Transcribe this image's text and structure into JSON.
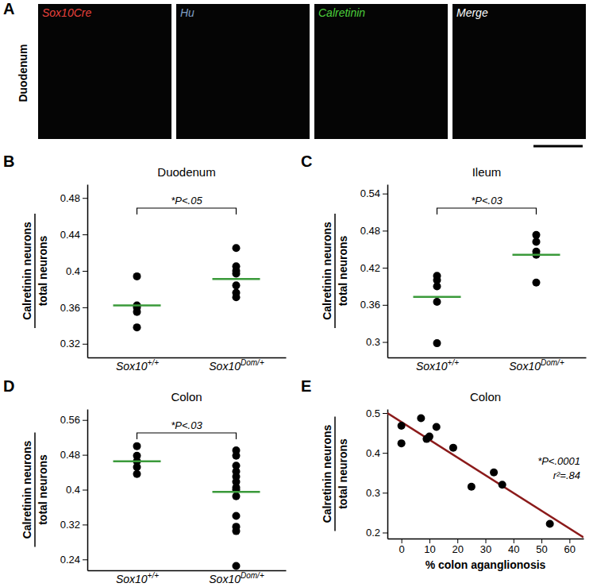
{
  "panel_a": {
    "panel_label": "A",
    "row_label": "Duodenum",
    "images": [
      {
        "label": "Sox10Cre",
        "color": "#e8413c"
      },
      {
        "label": "Hu",
        "color": "#7f9fc4"
      },
      {
        "label": "Calretinin",
        "color": "#4ccf3c"
      },
      {
        "label": "Merge",
        "color": "#ffffff"
      }
    ]
  },
  "chart_data": [
    {
      "type": "strip",
      "panel_label": "B",
      "title": "Duodenum",
      "ylabel": [
        "Calretinin neurons",
        "total neurons"
      ],
      "categories": [
        "Sox10+/+",
        "Sox10Dom/+"
      ],
      "values": [
        [
          0.394,
          0.362,
          0.36,
          0.355,
          0.338
        ],
        [
          0.425,
          0.405,
          0.4,
          0.397,
          0.384,
          0.376,
          0.371
        ]
      ],
      "means": [
        0.362,
        0.391
      ],
      "color": "#000000",
      "ylim": [
        0.305,
        0.495
      ],
      "yticks": [
        0.32,
        0.36,
        0.4,
        0.44,
        0.48
      ],
      "annotations": [
        "*P<.05"
      ]
    },
    {
      "type": "strip",
      "panel_label": "C",
      "title": "Ileum",
      "ylabel": [
        "Calretinin neurons",
        "total neurons"
      ],
      "categories": [
        "Sox10+/+",
        "Sox10Dom/+"
      ],
      "values": [
        [
          0.407,
          0.4,
          0.39,
          0.365,
          0.298
        ],
        [
          0.473,
          0.462,
          0.446,
          0.441,
          0.396
        ]
      ],
      "means": [
        0.373,
        0.441
      ],
      "color": "#000000",
      "ylim": [
        0.275,
        0.555
      ],
      "yticks": [
        0.3,
        0.36,
        0.42,
        0.48,
        0.54
      ],
      "annotations": [
        "*P<.03"
      ]
    },
    {
      "type": "strip",
      "panel_label": "D",
      "title": "Colon",
      "ylabel": [
        "Calretinin neurons",
        "total neurons"
      ],
      "categories": [
        "Sox10+/+",
        "Sox10Dom/+"
      ],
      "values": [
        [
          0.5,
          0.478,
          0.465,
          0.452,
          0.436
        ],
        [
          0.49,
          0.478,
          0.455,
          0.442,
          0.43,
          0.418,
          0.405,
          0.4,
          0.385,
          0.34,
          0.315,
          0.305,
          0.225
        ]
      ],
      "means": [
        0.465,
        0.395
      ],
      "color": "#000000",
      "ylim": [
        0.215,
        0.585
      ],
      "yticks": [
        0.24,
        0.32,
        0.4,
        0.48,
        0.56
      ],
      "annotations": [
        "*P<.03"
      ]
    },
    {
      "type": "scatter",
      "panel_label": "E",
      "title": "Colon",
      "ylabel": [
        "Calretinin neurons",
        "total neurons"
      ],
      "xlabel": "% colon aganglionosis",
      "x": [
        0,
        0,
        7,
        9,
        10,
        12.5,
        18.5,
        25,
        33,
        36,
        53
      ],
      "values": [
        0.468,
        0.424,
        0.487,
        0.435,
        0.441,
        0.465,
        0.413,
        0.315,
        0.351,
        0.32,
        0.222
      ],
      "fit": {
        "x": [
          -5,
          65
        ],
        "y": [
          0.5,
          0.188
        ]
      },
      "color": "#000000",
      "xlim": [
        -5,
        65
      ],
      "xticks": [
        0,
        10,
        20,
        30,
        40,
        50,
        60
      ],
      "ylim": [
        0.185,
        0.51
      ],
      "yticks": [
        0.2,
        0.3,
        0.4,
        0.5
      ],
      "annotations": [
        "*P<.0001",
        "r²=.84"
      ]
    }
  ]
}
